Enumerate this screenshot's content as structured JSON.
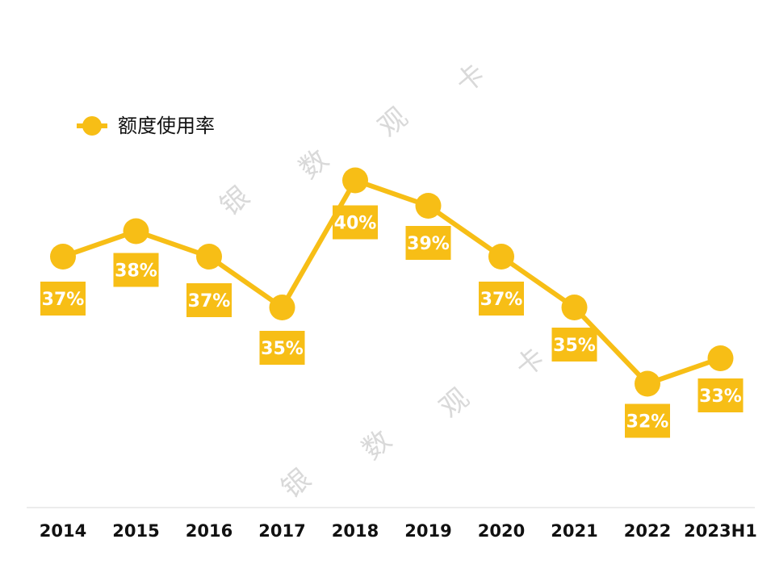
{
  "chart_data": {
    "type": "line",
    "categories": [
      "2014",
      "2015",
      "2016",
      "2017",
      "2018",
      "2019",
      "2020",
      "2021",
      "2022",
      "2023H1"
    ],
    "series": [
      {
        "name": "额度使用率",
        "values": [
          37,
          38,
          37,
          35,
          40,
          39,
          37,
          35,
          32,
          33
        ],
        "labels": [
          "37%",
          "38%",
          "37%",
          "35%",
          "40%",
          "39%",
          "37%",
          "35%",
          "32%",
          "33%"
        ]
      }
    ],
    "title": "",
    "xlabel": "",
    "ylabel": "",
    "ylim": [
      30,
      42
    ],
    "grid": false,
    "legend_position": "top-left",
    "colors": {
      "series": "#F7BE16",
      "label_text": "#ffffff",
      "axis_text": "#111111",
      "baseline": "#d9d9d9",
      "watermark": "#d9d9d9"
    }
  },
  "watermark": {
    "chars_1": [
      "银",
      "数",
      "观",
      "卡"
    ],
    "chars_2": [
      "银",
      "数",
      "观",
      "卡"
    ]
  }
}
